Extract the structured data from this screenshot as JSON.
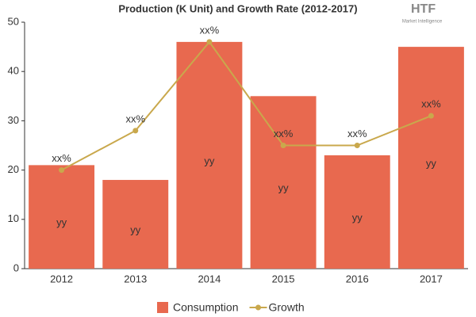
{
  "chart_data": {
    "type": "bar",
    "title": "Production (K Unit) and Growth Rate (2012-2017)",
    "logo": {
      "brand": "HTF",
      "tagline": "Market Intelligence"
    },
    "categories": [
      "2012",
      "2013",
      "2014",
      "2015",
      "2016",
      "2017"
    ],
    "series": [
      {
        "name": "Consumption",
        "type": "bar",
        "color": "#e8694f",
        "values": [
          21,
          18,
          46,
          35,
          23,
          45
        ],
        "value_labels": [
          "yy",
          "yy",
          "yy",
          "yy",
          "yy",
          "yy"
        ]
      },
      {
        "name": "Growth",
        "type": "line",
        "color": "#c9a84c",
        "values": [
          20,
          28,
          46,
          25,
          25,
          31
        ],
        "value_labels": [
          "xx%",
          "xx%",
          "xx%",
          "xx%",
          "xx%",
          "xx%"
        ]
      }
    ],
    "ylim": [
      0,
      50
    ],
    "yticks": [
      0,
      10,
      20,
      30,
      40,
      50
    ],
    "grid": false
  }
}
